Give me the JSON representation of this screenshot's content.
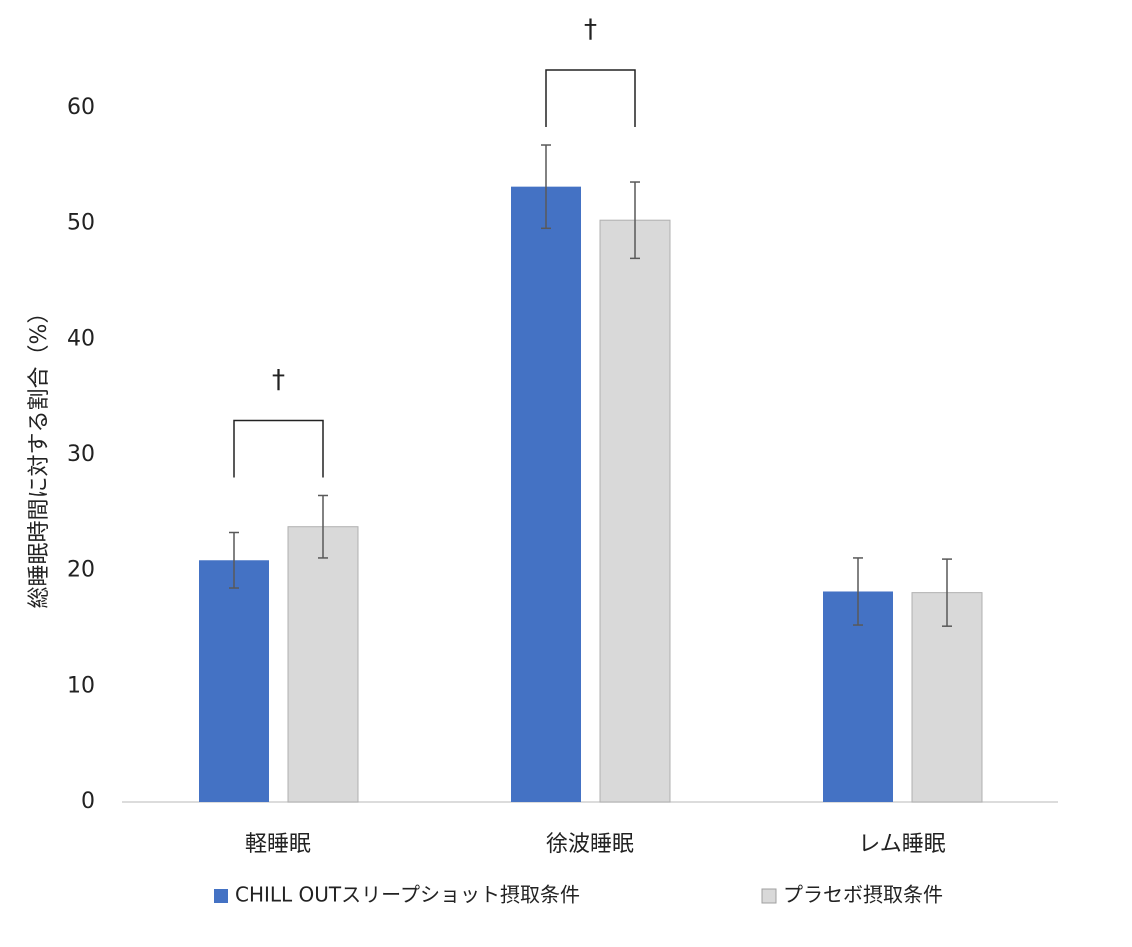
{
  "chart_data": {
    "type": "bar",
    "y_label": "総睡眠時間に対する割合（%）",
    "categories": [
      "軽睡眠",
      "徐波睡眠",
      "レム睡眠"
    ],
    "series": [
      {
        "name": "CHILL OUTスリープショット摂取条件",
        "color": "#4472c4",
        "values": [
          20.9,
          53.2,
          18.2
        ],
        "errors": [
          2.4,
          3.6,
          2.9
        ]
      },
      {
        "name": "プラセボ摂取条件",
        "color": "#d9d9d9",
        "values": [
          23.8,
          50.3,
          18.1
        ],
        "errors": [
          2.7,
          3.3,
          2.9
        ]
      }
    ],
    "ylim": [
      0,
      60
    ],
    "yticks": [
      0,
      10,
      20,
      30,
      40,
      50,
      60
    ],
    "annotations": [
      {
        "text": "†",
        "category": "軽睡眠"
      },
      {
        "text": "†",
        "category": "徐波睡眠"
      }
    ],
    "legend": "bottom"
  }
}
